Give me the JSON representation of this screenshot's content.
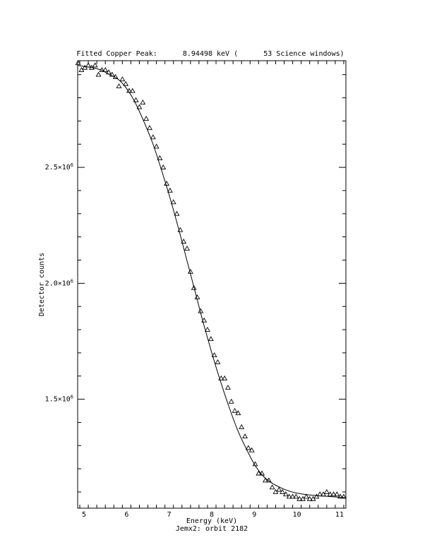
{
  "chart_data": {
    "type": "scatter",
    "title": "Fitted Copper Peak:      8.94498 keV (      53 Science windows)",
    "xlabel": "Energy (keV)",
    "subtitle": "Jemx2: orbit 2182",
    "ylabel": "Detector counts",
    "xlim": [
      4.85,
      11.15
    ],
    "ylim": [
      1030000,
      2960000
    ],
    "x_ticks": [
      5,
      6,
      7,
      8,
      9,
      10,
      11
    ],
    "y_ticks": [
      {
        "value": 1500000,
        "mantissa": "1.5",
        "base": "×10",
        "exp": "6"
      },
      {
        "value": 2000000,
        "mantissa": "2.0",
        "base": "×10",
        "exp": "6"
      },
      {
        "value": 2500000,
        "mantissa": "2.5",
        "base": "×10",
        "exp": "6"
      }
    ],
    "grid": false,
    "series": [
      {
        "marker": "triangle",
        "x": [
          4.86,
          4.94,
          5.02,
          5.1,
          5.18,
          5.26,
          5.34,
          5.42,
          5.5,
          5.58,
          5.66,
          5.74,
          5.82,
          5.9,
          5.98,
          6.06,
          6.14,
          6.22,
          6.3,
          6.38,
          6.46,
          6.54,
          6.62,
          6.7,
          6.78,
          6.86,
          6.94,
          7.02,
          7.1,
          7.18,
          7.26,
          7.34,
          7.42,
          7.5,
          7.58,
          7.66,
          7.74,
          7.82,
          7.9,
          7.98,
          8.06,
          8.14,
          8.22,
          8.3,
          8.38,
          8.46,
          8.54,
          8.62,
          8.7,
          8.78,
          8.86,
          8.94,
          9.02,
          9.1,
          9.18,
          9.26,
          9.34,
          9.42,
          9.5,
          9.58,
          9.66,
          9.74,
          9.82,
          9.9,
          9.98,
          10.06,
          10.14,
          10.22,
          10.3,
          10.38,
          10.46,
          10.54,
          10.62,
          10.7,
          10.78,
          10.86,
          10.94,
          11.02,
          11.1
        ],
        "y": [
          2950000,
          2920000,
          2930000,
          2940000,
          2930000,
          2940000,
          2900000,
          2920000,
          2920000,
          2910000,
          2900000,
          2890000,
          2850000,
          2880000,
          2860000,
          2830000,
          2830000,
          2790000,
          2760000,
          2780000,
          2710000,
          2670000,
          2630000,
          2590000,
          2540000,
          2500000,
          2430000,
          2400000,
          2350000,
          2300000,
          2230000,
          2180000,
          2150000,
          2050000,
          1980000,
          1940000,
          1880000,
          1840000,
          1800000,
          1760000,
          1690000,
          1660000,
          1590000,
          1590000,
          1550000,
          1490000,
          1450000,
          1440000,
          1380000,
          1340000,
          1290000,
          1280000,
          1220000,
          1180000,
          1180000,
          1150000,
          1150000,
          1120000,
          1100000,
          1110000,
          1100000,
          1090000,
          1080000,
          1080000,
          1080000,
          1070000,
          1070000,
          1080000,
          1070000,
          1070000,
          1080000,
          1090000,
          1090000,
          1100000,
          1090000,
          1090000,
          1090000,
          1080000,
          1080000
        ]
      },
      {
        "style": "line",
        "x": [
          4.85,
          5.0,
          5.2,
          5.4,
          5.6,
          5.8,
          6.0,
          6.2,
          6.4,
          6.6,
          6.8,
          7.0,
          7.2,
          7.4,
          7.6,
          7.8,
          8.0,
          8.2,
          8.4,
          8.6,
          8.8,
          9.0,
          9.2,
          9.4,
          9.6,
          9.8,
          10.0,
          10.4,
          10.8,
          11.15
        ],
        "y": [
          2940000,
          2935000,
          2930000,
          2920000,
          2900000,
          2880000,
          2840000,
          2780000,
          2700000,
          2610000,
          2500000,
          2380000,
          2250000,
          2110000,
          1970000,
          1830000,
          1700000,
          1580000,
          1470000,
          1370000,
          1290000,
          1220000,
          1170000,
          1140000,
          1120000,
          1105000,
          1095000,
          1085000,
          1080000,
          1075000
        ]
      }
    ]
  }
}
